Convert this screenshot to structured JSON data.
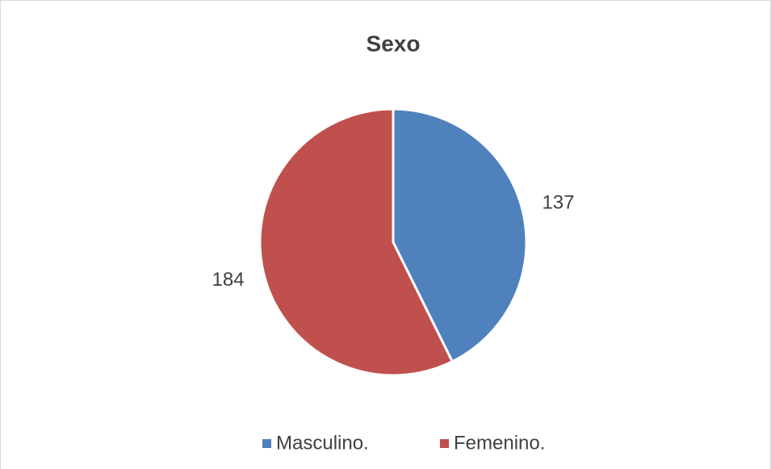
{
  "chart_data": {
    "type": "pie",
    "title": "Sexo",
    "categories": [
      "Masculino.",
      "Femenino."
    ],
    "values": [
      137,
      184
    ],
    "colors": [
      "#4f81bd",
      "#c0504d"
    ],
    "legend": "bottom"
  }
}
